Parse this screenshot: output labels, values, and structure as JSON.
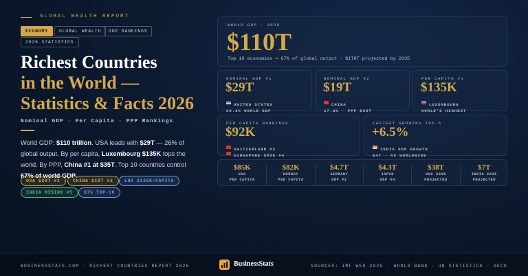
{
  "header": {
    "kicker": "GLOBAL WEALTH REPORT",
    "tags": [
      {
        "text": "ECONOMY",
        "active": true
      },
      {
        "text": "GLOBAL WEALTH",
        "active": false
      },
      {
        "text": "GDP RANKINGS",
        "active": false
      },
      {
        "text": "2026 STATISTICS",
        "active": false
      }
    ],
    "title": [
      "Richest Countries",
      "in the World —",
      "Statistics & Facts 2026"
    ],
    "subtitle": "Nominal GDP · Per Capita · PPP Rankings",
    "intro": [
      {
        "text": "World GDP: ",
        "bold": false
      },
      {
        "text": "$110 trillion",
        "bold": true
      },
      {
        "text": ". USA leads with ",
        "bold": false
      },
      {
        "text": "$29T",
        "bold": true
      },
      {
        "text": " — 26% of global output. By per capita, ",
        "bold": false
      },
      {
        "text": "Luxembourg $135K",
        "bold": true
      },
      {
        "text": " tops the world. By PPP, ",
        "bold": false
      },
      {
        "text": "China #1 at $35T",
        "bold": true
      },
      {
        "text": ". Top 10 countries control ",
        "bold": false
      },
      {
        "text": "67% of world GDP",
        "bold": true
      },
      {
        "text": ".",
        "bold": false
      }
    ],
    "pills": [
      {
        "text": "USA $29T #1",
        "color": "#d4a94a"
      },
      {
        "text": "CHINA $19T #2",
        "color": "#d4a94a"
      },
      {
        "text": "LUX $135K/CAPITA",
        "color": "#6f9fe0"
      },
      {
        "text": "INDIA RISING #5",
        "color": "#4fbf83"
      },
      {
        "text": "67% TOP-10",
        "color": "#6f9fe0"
      }
    ]
  },
  "hero": {
    "label": "WORLD GDP · 2025",
    "value": "$110T",
    "note": "Top 10 economies = 67% of global output · $170T projected by 2035"
  },
  "cards": [
    {
      "label": "NOMINAL GDP #1",
      "value": "$29T",
      "lines": [
        "UNITED STATES",
        "26.3% WORLD GDP"
      ]
    },
    {
      "label": "NOMINAL GDP #2",
      "value": "$19T",
      "lines": [
        "CHINA",
        "17.3% · PPP $35T"
      ]
    },
    {
      "label": "PER CAPITA #1",
      "value": "$135K",
      "lines": [
        "LUXEMBOURG",
        "WORLD'S HIGHEST"
      ]
    },
    {
      "label": "PER CAPITA RANKINGS",
      "value": "$92K",
      "lines": [
        "SWITZERLAND #2",
        "SINGAPORE $85K #4"
      ]
    },
    {
      "label": "FASTEST GROWING TOP-5",
      "value": "+6.5%",
      "lines": [
        "INDIA GDP GROWTH",
        "$4T · #5 WORLDWIDE"
      ]
    }
  ],
  "stats": [
    {
      "value": "$85K",
      "lines": [
        "USA",
        "PER CAPITA"
      ]
    },
    {
      "value": "$82K",
      "lines": [
        "NORWAY",
        "PER CAPITA"
      ]
    },
    {
      "value": "$4.7T",
      "lines": [
        "GERMANY",
        "GDP #3"
      ]
    },
    {
      "value": "$4.3T",
      "lines": [
        "JAPAN",
        "GDP #4"
      ]
    },
    {
      "value": "$38T",
      "lines": [
        "USA 2035",
        "PROJECTED"
      ]
    },
    {
      "value": "$7T",
      "lines": [
        "INDIA 2035",
        "PROJECTED"
      ]
    }
  ],
  "footer": {
    "left": "BUSINESSSTATS.COM  ·  RICHEST COUNTRIES REPORT 2026",
    "brand": "BusinessStats",
    "sources": "SOURCES: IMF WEO 2025  ·  WORLD BANK  ·  UN STATISTICS  ·  OECD"
  }
}
